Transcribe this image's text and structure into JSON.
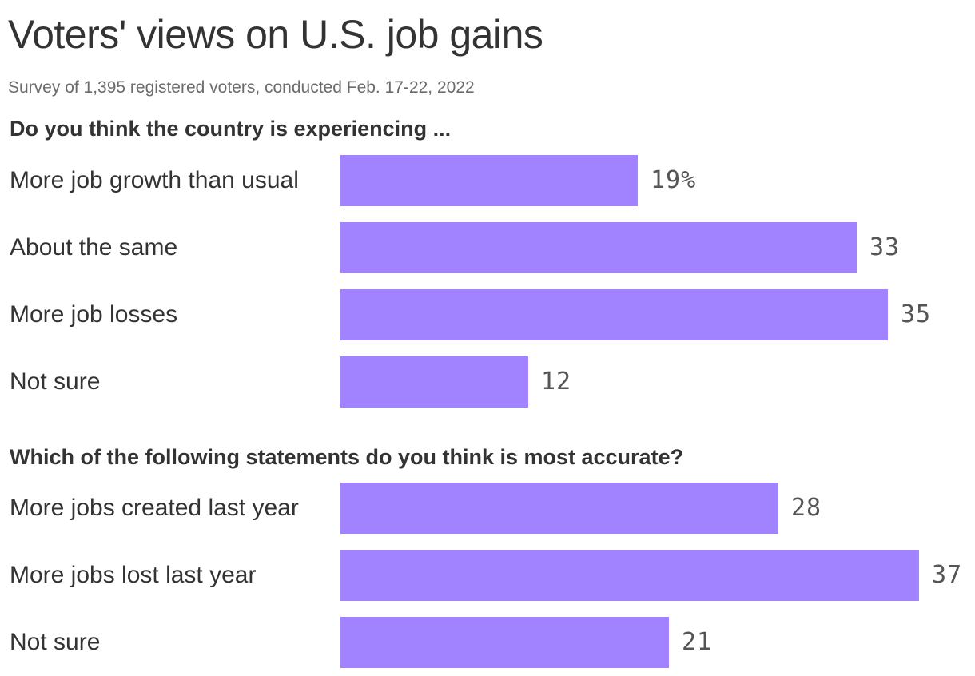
{
  "title": "Voters' views on U.S. job gains",
  "subtitle": "Survey of 1,395 registered voters, conducted Feb. 17-22, 2022",
  "colors": {
    "bar": "#a182ff",
    "text": "#333333",
    "muted": "#6b6b6b"
  },
  "chart_data": [
    {
      "type": "bar",
      "orientation": "horizontal",
      "title": "Do you think the country is experiencing ...",
      "categories": [
        "More job growth than usual",
        "About the same",
        "More job losses",
        "Not sure"
      ],
      "values": [
        19,
        33,
        35,
        12
      ],
      "value_labels": [
        "19%",
        "33",
        "35",
        "12"
      ],
      "unit": "%",
      "xlim": [
        0,
        37
      ]
    },
    {
      "type": "bar",
      "orientation": "horizontal",
      "title": "Which of the following statements do you think is most accurate?",
      "categories": [
        "More jobs created last year",
        "More jobs lost last year",
        "Not sure"
      ],
      "values": [
        28,
        37,
        21
      ],
      "value_labels": [
        "28",
        "37",
        "21"
      ],
      "unit": "%",
      "xlim": [
        0,
        37
      ]
    }
  ]
}
